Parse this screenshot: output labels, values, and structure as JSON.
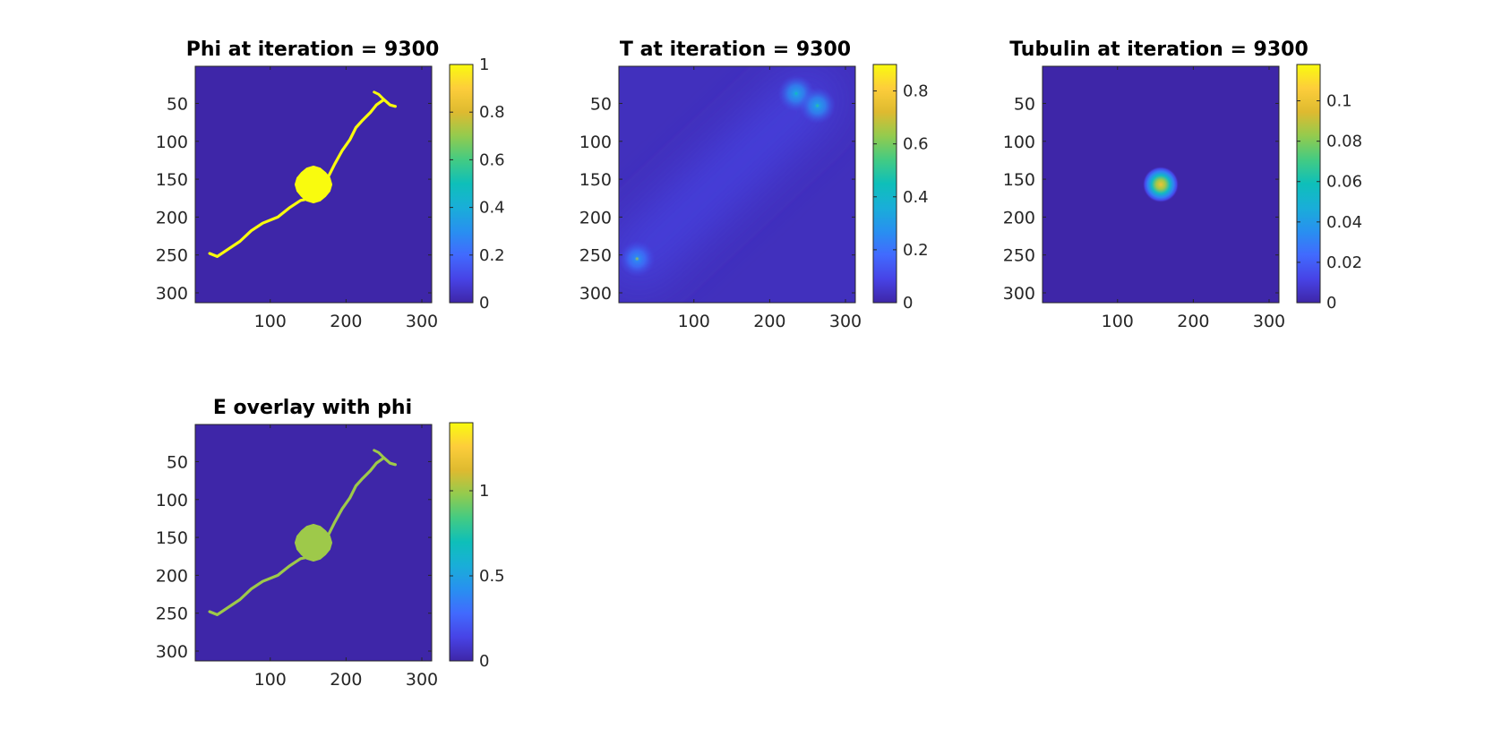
{
  "figure": {
    "background": "#ffffff",
    "field_color": "#3e26a8",
    "colormap": "parula"
  },
  "chart_data": [
    {
      "type": "heatmap",
      "title": "Phi at iteration = 9300",
      "xticks": [
        100,
        200,
        300
      ],
      "yticks": [
        50,
        100,
        150,
        200,
        250,
        300
      ],
      "xlim": [
        1,
        313
      ],
      "ylim": [
        1,
        313
      ],
      "y_direction": "reverse",
      "colorbar": {
        "ticks": [
          "0",
          "0.2",
          "0.4",
          "0.6",
          "0.8",
          "1"
        ],
        "tick_values": [
          0,
          0.2,
          0.4,
          0.6,
          0.8,
          1
        ],
        "range": [
          0,
          1
        ]
      },
      "shape": "cell",
      "value_in_cell": 1.0,
      "value_background": 0.0,
      "soma": {
        "center": [
          157,
          157
        ],
        "radius": 24
      },
      "neurite_path": [
        [
          20,
          248
        ],
        [
          30,
          252
        ],
        [
          45,
          242
        ],
        [
          60,
          232
        ],
        [
          75,
          218
        ],
        [
          90,
          208
        ],
        [
          110,
          200
        ],
        [
          125,
          188
        ],
        [
          140,
          178
        ],
        [
          155,
          175
        ],
        [
          170,
          160
        ],
        [
          185,
          130
        ],
        [
          195,
          112
        ],
        [
          205,
          98
        ],
        [
          213,
          82
        ],
        [
          222,
          72
        ],
        [
          232,
          62
        ],
        [
          240,
          52
        ],
        [
          250,
          45
        ],
        [
          258,
          52
        ],
        [
          265,
          54
        ]
      ],
      "branch_path": [
        [
          250,
          45
        ],
        [
          243,
          38
        ],
        [
          237,
          35
        ]
      ]
    },
    {
      "type": "heatmap",
      "title": "T at iteration = 9300",
      "xticks": [
        100,
        200,
        300
      ],
      "yticks": [
        50,
        100,
        150,
        200,
        250,
        300
      ],
      "xlim": [
        1,
        313
      ],
      "ylim": [
        1,
        313
      ],
      "y_direction": "reverse",
      "colorbar": {
        "ticks": [
          "0",
          "0.2",
          "0.4",
          "0.6",
          "0.8"
        ],
        "tick_values": [
          0,
          0.2,
          0.4,
          0.6,
          0.8
        ],
        "range": [
          0,
          0.9
        ]
      },
      "shape": "gaussian-hotspots",
      "value_background": 0.03,
      "diagonal_band": {
        "from": [
          25,
          255
        ],
        "to": [
          250,
          45
        ],
        "value": 0.07
      },
      "hotspots": [
        {
          "center": [
            25,
            255
          ],
          "halo": 0.2,
          "peak": 0.65
        },
        {
          "center": [
            235,
            37
          ],
          "halo": 0.25,
          "peak": 0.45
        },
        {
          "center": [
            263,
            53
          ],
          "halo": 0.25,
          "peak": 0.5
        }
      ]
    },
    {
      "type": "heatmap",
      "title": "Tubulin at iteration = 9300",
      "xticks": [
        100,
        200,
        300
      ],
      "yticks": [
        50,
        100,
        150,
        200,
        250,
        300
      ],
      "xlim": [
        1,
        313
      ],
      "ylim": [
        1,
        313
      ],
      "y_direction": "reverse",
      "colorbar": {
        "ticks": [
          "0",
          "0.02",
          "0.04",
          "0.06",
          "0.08",
          "0.1"
        ],
        "tick_values": [
          0,
          0.02,
          0.04,
          0.06,
          0.08,
          0.1
        ],
        "range": [
          0,
          0.118
        ]
      },
      "shape": "gaussian-blob",
      "value_background": 0.0,
      "blob": {
        "center": [
          157,
          157
        ],
        "radius": 24,
        "peak": 0.1
      }
    },
    {
      "type": "heatmap",
      "title": "E overlay with phi",
      "xticks": [
        100,
        200,
        300
      ],
      "yticks": [
        50,
        100,
        150,
        200,
        250,
        300
      ],
      "xlim": [
        1,
        313
      ],
      "ylim": [
        1,
        313
      ],
      "y_direction": "reverse",
      "colorbar": {
        "ticks": [
          "0",
          "0.5",
          "1"
        ],
        "tick_values": [
          0,
          0.5,
          1
        ],
        "range": [
          0,
          1.4
        ]
      },
      "shape": "cell",
      "value_in_cell": 1.0,
      "value_background": 0.0,
      "soma": {
        "center": [
          157,
          157
        ],
        "radius": 24
      },
      "neurite_path": [
        [
          20,
          248
        ],
        [
          30,
          252
        ],
        [
          45,
          242
        ],
        [
          60,
          232
        ],
        [
          75,
          218
        ],
        [
          90,
          208
        ],
        [
          110,
          200
        ],
        [
          125,
          188
        ],
        [
          140,
          178
        ],
        [
          155,
          175
        ],
        [
          170,
          160
        ],
        [
          185,
          130
        ],
        [
          195,
          112
        ],
        [
          205,
          98
        ],
        [
          213,
          82
        ],
        [
          222,
          72
        ],
        [
          232,
          62
        ],
        [
          240,
          52
        ],
        [
          250,
          45
        ],
        [
          258,
          52
        ],
        [
          265,
          54
        ]
      ],
      "branch_path": [
        [
          250,
          45
        ],
        [
          243,
          38
        ],
        [
          237,
          35
        ]
      ]
    }
  ]
}
